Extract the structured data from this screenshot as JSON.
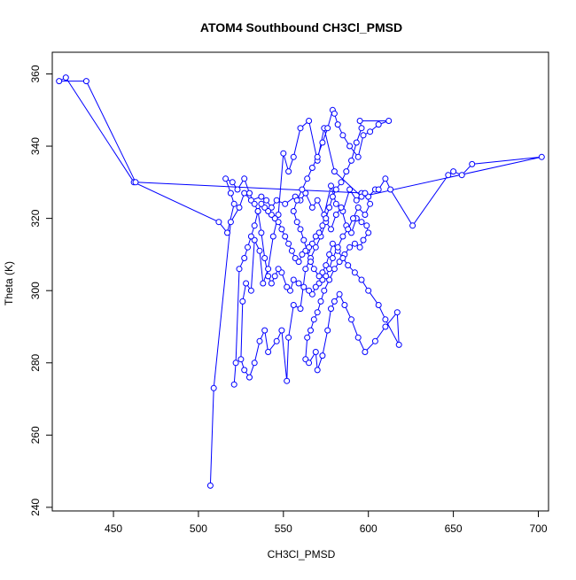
{
  "chart_data": {
    "type": "line",
    "title": "ATOM4 Southbound CH3Cl_PMSD",
    "xlabel": "CH3Cl_PMSD",
    "ylabel": "Theta (K)",
    "xlim": [
      414,
      706
    ],
    "ylim": [
      239,
      366
    ],
    "x_ticks": [
      450,
      500,
      550,
      600,
      650,
      700
    ],
    "y_ticks": [
      240,
      260,
      280,
      300,
      320,
      340,
      360
    ],
    "grid": false,
    "legend": "none",
    "series": [
      {
        "color": "#0000ff",
        "markers": "open-circle",
        "lines": true,
        "points": [
          [
            507,
            246
          ],
          [
            509,
            273
          ],
          [
            519,
            319
          ],
          [
            524,
            323
          ],
          [
            527,
            327
          ],
          [
            531,
            325
          ],
          [
            537,
            326
          ],
          [
            540,
            325
          ],
          [
            543,
            323
          ],
          [
            546,
            325
          ],
          [
            551,
            324
          ],
          [
            557,
            326
          ],
          [
            560,
            325
          ],
          [
            563,
            327
          ],
          [
            567,
            323
          ],
          [
            570,
            325
          ],
          [
            574,
            321
          ],
          [
            578,
            329
          ],
          [
            581,
            324
          ],
          [
            585,
            322
          ],
          [
            589,
            328
          ],
          [
            593,
            325
          ],
          [
            596,
            327
          ],
          [
            600,
            326
          ],
          [
            604,
            328
          ],
          [
            606,
            328
          ],
          [
            610,
            331
          ],
          [
            613,
            328
          ],
          [
            626,
            318
          ],
          [
            647,
            332
          ],
          [
            650,
            333
          ],
          [
            655,
            332
          ],
          [
            661,
            335
          ],
          [
            702,
            337
          ],
          [
            596,
            326
          ],
          [
            580,
            333
          ],
          [
            574,
            345
          ],
          [
            570,
            336
          ],
          [
            565,
            347
          ],
          [
            560,
            345
          ],
          [
            556,
            337
          ],
          [
            553,
            333
          ],
          [
            550,
            338
          ],
          [
            547,
            321
          ],
          [
            544,
            315
          ],
          [
            541,
            306
          ],
          [
            538,
            302
          ],
          [
            536,
            311
          ],
          [
            533,
            314
          ],
          [
            531,
            300
          ],
          [
            528,
            302
          ],
          [
            526,
            297
          ],
          [
            525,
            281
          ],
          [
            527,
            278
          ],
          [
            530,
            276
          ],
          [
            533,
            280
          ],
          [
            536,
            286
          ],
          [
            539,
            289
          ],
          [
            541,
            283
          ],
          [
            546,
            286
          ],
          [
            549,
            289
          ],
          [
            552,
            275
          ],
          [
            553,
            287
          ],
          [
            556,
            296
          ],
          [
            560,
            295
          ],
          [
            563,
            306
          ],
          [
            566,
            309
          ],
          [
            569,
            312
          ],
          [
            572,
            315
          ],
          [
            575,
            319
          ],
          [
            578,
            317
          ],
          [
            581,
            321
          ],
          [
            584,
            323
          ],
          [
            587,
            318
          ],
          [
            590,
            316
          ],
          [
            593,
            320
          ],
          [
            596,
            319
          ],
          [
            599,
            318
          ],
          [
            600,
            316
          ],
          [
            597,
            314
          ],
          [
            595,
            312
          ],
          [
            592,
            313
          ],
          [
            589,
            312
          ],
          [
            586,
            310
          ],
          [
            583,
            308
          ],
          [
            580,
            306
          ],
          [
            577,
            303
          ],
          [
            574,
            300
          ],
          [
            572,
            297
          ],
          [
            570,
            294
          ],
          [
            568,
            292
          ],
          [
            566,
            289
          ],
          [
            564,
            287
          ],
          [
            563,
            281
          ],
          [
            565,
            280
          ],
          [
            569,
            283
          ],
          [
            570,
            278
          ],
          [
            573,
            282
          ],
          [
            576,
            289
          ],
          [
            578,
            295
          ],
          [
            580,
            297
          ],
          [
            583,
            299
          ],
          [
            586,
            296
          ],
          [
            590,
            292
          ],
          [
            594,
            287
          ],
          [
            598,
            283
          ],
          [
            604,
            286
          ],
          [
            610,
            290
          ],
          [
            617,
            294
          ],
          [
            618,
            285
          ],
          [
            610,
            292
          ],
          [
            606,
            296
          ],
          [
            600,
            300
          ],
          [
            596,
            303
          ],
          [
            592,
            305
          ],
          [
            588,
            307
          ],
          [
            585,
            309
          ],
          [
            582,
            311
          ],
          [
            579,
            313
          ],
          [
            577,
            310
          ],
          [
            575,
            307
          ],
          [
            573,
            305
          ],
          [
            571,
            302
          ],
          [
            569,
            301
          ],
          [
            567,
            299
          ],
          [
            565,
            300
          ],
          [
            562,
            301
          ],
          [
            559,
            302
          ],
          [
            556,
            303
          ],
          [
            554,
            300
          ],
          [
            552,
            301
          ],
          [
            549,
            305
          ],
          [
            547,
            306
          ],
          [
            545,
            304
          ],
          [
            543,
            302
          ],
          [
            541,
            304
          ],
          [
            539,
            309
          ],
          [
            537,
            316
          ],
          [
            535,
            322
          ],
          [
            533,
            324
          ],
          [
            530,
            327
          ],
          [
            527,
            331
          ],
          [
            523,
            328
          ],
          [
            520,
            330
          ],
          [
            516,
            331
          ],
          [
            519,
            327
          ],
          [
            521,
            324
          ],
          [
            517,
            316
          ],
          [
            512,
            319
          ],
          [
            462,
            330
          ],
          [
            422,
            359
          ],
          [
            418,
            358
          ],
          [
            434,
            358
          ],
          [
            463,
            330
          ],
          [
            598,
            327
          ],
          [
            601,
            324
          ],
          [
            598,
            321
          ],
          [
            594,
            323
          ],
          [
            591,
            320
          ],
          [
            588,
            317
          ],
          [
            585,
            315
          ],
          [
            582,
            312
          ],
          [
            579,
            309
          ],
          [
            577,
            306
          ],
          [
            575,
            304
          ],
          [
            573,
            303
          ],
          [
            571,
            304
          ],
          [
            568,
            306
          ],
          [
            566,
            308
          ],
          [
            564,
            311
          ],
          [
            562,
            314
          ],
          [
            560,
            317
          ],
          [
            558,
            319
          ],
          [
            556,
            322
          ],
          [
            558,
            325
          ],
          [
            561,
            328
          ],
          [
            564,
            331
          ],
          [
            567,
            334
          ],
          [
            570,
            337
          ],
          [
            573,
            341
          ],
          [
            576,
            345
          ],
          [
            579,
            350
          ],
          [
            580,
            349
          ],
          [
            582,
            346
          ],
          [
            585,
            343
          ],
          [
            589,
            340
          ],
          [
            594,
            337
          ],
          [
            597,
            343
          ],
          [
            601,
            344
          ],
          [
            606,
            346
          ],
          [
            612,
            347
          ],
          [
            595,
            347
          ],
          [
            596,
            345
          ],
          [
            593,
            341
          ],
          [
            590,
            336
          ],
          [
            587,
            333
          ],
          [
            584,
            330
          ],
          [
            581,
            328
          ],
          [
            579,
            326
          ],
          [
            577,
            323
          ],
          [
            575,
            320
          ],
          [
            573,
            318
          ],
          [
            571,
            316
          ],
          [
            569,
            315
          ],
          [
            567,
            313
          ],
          [
            565,
            312
          ],
          [
            563,
            311
          ],
          [
            561,
            310
          ],
          [
            559,
            308
          ],
          [
            557,
            309
          ],
          [
            555,
            311
          ],
          [
            553,
            313
          ],
          [
            551,
            315
          ],
          [
            549,
            317
          ],
          [
            547,
            319
          ],
          [
            545,
            320
          ],
          [
            543,
            321
          ],
          [
            541,
            322
          ],
          [
            539,
            323
          ],
          [
            537,
            324
          ],
          [
            535,
            322
          ],
          [
            533,
            318
          ],
          [
            531,
            315
          ],
          [
            529,
            312
          ],
          [
            527,
            309
          ],
          [
            524,
            306
          ],
          [
            522,
            280
          ],
          [
            521,
            274
          ]
        ]
      }
    ]
  }
}
